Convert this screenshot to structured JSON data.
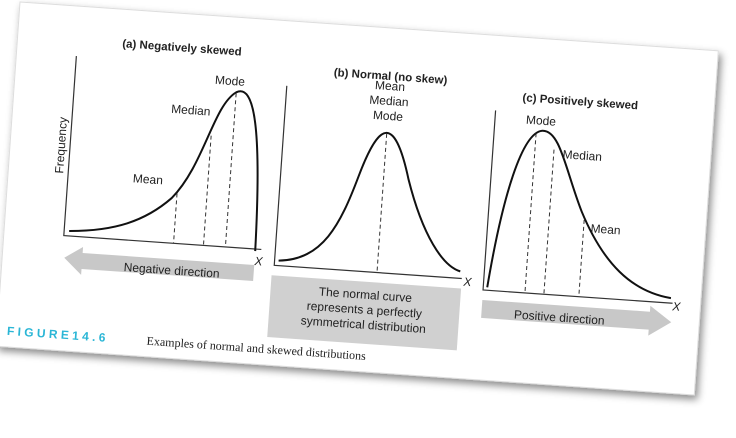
{
  "panels": [
    {
      "title": "(a) Negatively skewed",
      "labels": [
        "Mode",
        "Median",
        "Mean"
      ],
      "x_label": "X"
    },
    {
      "title": "(b) Normal (no skew)",
      "labels": [
        "Mean",
        "Median",
        "Mode"
      ],
      "x_label": "X"
    },
    {
      "title": "(c) Positively skewed",
      "labels": [
        "Mode",
        "Median",
        "Mean"
      ],
      "x_label": "X"
    }
  ],
  "y_axis_label": "Frequency",
  "directions": {
    "negative": "Negative direction",
    "positive": "Positive direction"
  },
  "note": [
    "The normal curve",
    "represents a perfectly",
    "symmetrical distribution"
  ],
  "caption": {
    "figure": "F I G U R E  1 4 . 6",
    "text": "Examples of normal and skewed distributions"
  }
}
